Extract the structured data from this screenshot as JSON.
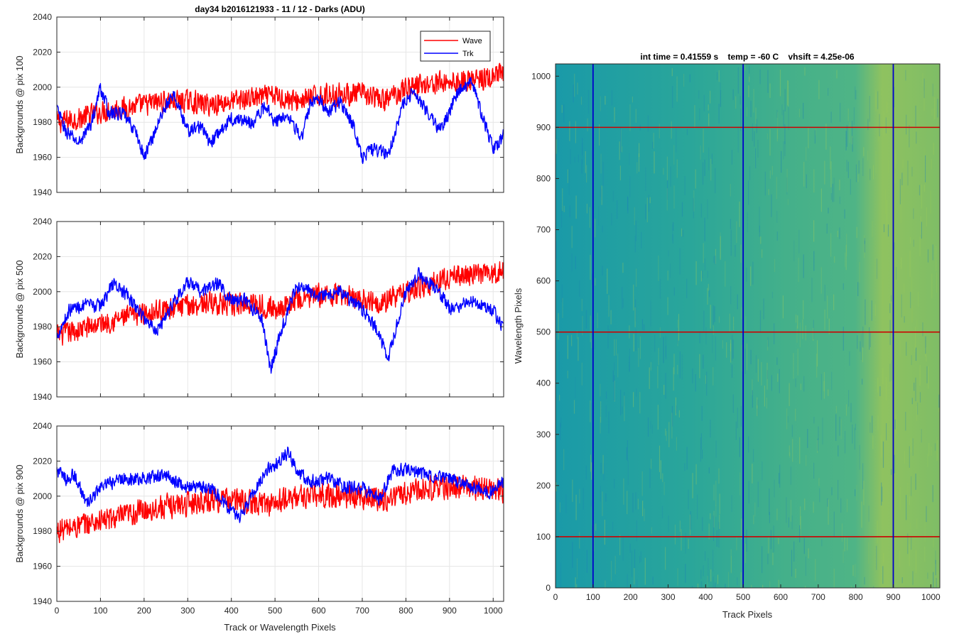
{
  "figure_title": "day34 b2016121933 - 11 / 12 - Darks (ADU)",
  "colors": {
    "wave": "#ff0000",
    "trk": "#0000ff",
    "grid": "#e6e6e6",
    "axis": "#262626"
  },
  "legend": {
    "placement": "top-right of first panel",
    "entries": [
      "Wave",
      "Trk"
    ]
  },
  "chart_data": [
    {
      "type": "line",
      "ylabel": "Backgrounds @ pix 100",
      "xlabel": "",
      "xlim": [
        0,
        1024
      ],
      "ylim": [
        1940,
        2040
      ],
      "xticks": [
        0,
        100,
        200,
        300,
        400,
        500,
        600,
        700,
        800,
        900,
        1000
      ],
      "yticks": [
        1940,
        1960,
        1980,
        2000,
        2020,
        2040
      ],
      "grid": true,
      "series": [
        {
          "name": "Wave",
          "color": "#ff0000",
          "x": [
            0,
            50,
            100,
            150,
            200,
            250,
            300,
            350,
            400,
            450,
            500,
            550,
            600,
            650,
            700,
            750,
            800,
            850,
            900,
            950,
            1000,
            1023
          ],
          "y": [
            1980,
            1982,
            1986,
            1988,
            1990,
            1992,
            1992,
            1990,
            1992,
            1994,
            1995,
            1992,
            1995,
            1996,
            1996,
            1992,
            2000,
            2002,
            2003,
            2004,
            2005,
            2008
          ],
          "spread": 10
        },
        {
          "name": "Trk",
          "color": "#0000ff",
          "x": [
            0,
            20,
            50,
            80,
            100,
            120,
            150,
            180,
            200,
            250,
            270,
            300,
            330,
            350,
            400,
            450,
            480,
            500,
            530,
            560,
            580,
            600,
            620,
            650,
            680,
            700,
            720,
            760,
            790,
            820,
            850,
            880,
            920,
            950,
            980,
            1000,
            1023
          ],
          "y": [
            1988,
            1975,
            1968,
            1980,
            2000,
            1985,
            1985,
            1975,
            1960,
            1990,
            1995,
            1975,
            1978,
            1968,
            1982,
            1980,
            1990,
            1980,
            1985,
            1970,
            1990,
            1995,
            1985,
            1992,
            1978,
            1960,
            1965,
            1962,
            1988,
            1998,
            1985,
            1975,
            1998,
            2003,
            1980,
            1965,
            1972
          ],
          "spread": 6
        }
      ]
    },
    {
      "type": "line",
      "ylabel": "Backgrounds @ pix 500",
      "xlabel": "",
      "xlim": [
        0,
        1024
      ],
      "ylim": [
        1940,
        2040
      ],
      "xticks": [
        0,
        100,
        200,
        300,
        400,
        500,
        600,
        700,
        800,
        900,
        1000
      ],
      "yticks": [
        1940,
        1960,
        1980,
        2000,
        2020,
        2040
      ],
      "grid": true,
      "series": [
        {
          "name": "Wave",
          "color": "#ff0000",
          "x": [
            0,
            50,
            100,
            150,
            200,
            250,
            300,
            350,
            400,
            450,
            500,
            550,
            600,
            650,
            700,
            750,
            800,
            850,
            900,
            950,
            1000,
            1023
          ],
          "y": [
            1975,
            1978,
            1982,
            1985,
            1988,
            1990,
            1992,
            1994,
            1992,
            1994,
            1990,
            1995,
            1998,
            1998,
            1996,
            1994,
            2000,
            2004,
            2008,
            2010,
            2010,
            2012
          ],
          "spread": 10
        },
        {
          "name": "Trk",
          "color": "#0000ff",
          "x": [
            0,
            30,
            60,
            100,
            130,
            160,
            200,
            230,
            270,
            300,
            330,
            370,
            400,
            430,
            470,
            490,
            510,
            550,
            600,
            650,
            700,
            730,
            760,
            800,
            830,
            870,
            900,
            950,
            1000,
            1023
          ],
          "y": [
            1975,
            1990,
            1992,
            1992,
            2005,
            1998,
            1985,
            1978,
            1995,
            2005,
            2000,
            2005,
            1995,
            1995,
            1985,
            1955,
            1975,
            2003,
            1998,
            2000,
            1990,
            1980,
            1962,
            2000,
            2010,
            2002,
            1990,
            1995,
            1990,
            1978
          ],
          "spread": 6
        }
      ]
    },
    {
      "type": "line",
      "ylabel": "Backgrounds @ pix 900",
      "xlabel": "Track or Wavelength Pixels",
      "xlim": [
        0,
        1024
      ],
      "ylim": [
        1940,
        2040
      ],
      "xticks": [
        0,
        100,
        200,
        300,
        400,
        500,
        600,
        700,
        800,
        900,
        1000
      ],
      "yticks": [
        1940,
        1960,
        1980,
        2000,
        2020,
        2040
      ],
      "grid": true,
      "series": [
        {
          "name": "Wave",
          "color": "#ff0000",
          "x": [
            0,
            50,
            100,
            150,
            200,
            250,
            300,
            350,
            400,
            450,
            500,
            550,
            600,
            650,
            700,
            750,
            800,
            850,
            900,
            950,
            1000,
            1023
          ],
          "y": [
            1980,
            1983,
            1986,
            1988,
            1992,
            1994,
            1996,
            1998,
            1998,
            1996,
            1996,
            2000,
            2000,
            2000,
            2000,
            1998,
            2002,
            2005,
            2005,
            2005,
            2004,
            2003
          ],
          "spread": 11
        },
        {
          "name": "Trk",
          "color": "#0000ff",
          "x": [
            0,
            20,
            40,
            70,
            100,
            150,
            200,
            250,
            300,
            350,
            400,
            420,
            450,
            480,
            500,
            530,
            550,
            580,
            620,
            660,
            700,
            740,
            770,
            800,
            850,
            900,
            950,
            1000,
            1023
          ],
          "y": [
            2015,
            2010,
            2012,
            1995,
            2005,
            2010,
            2010,
            2012,
            2005,
            2005,
            1992,
            1988,
            2002,
            2015,
            2018,
            2025,
            2015,
            2008,
            2010,
            2005,
            2005,
            1998,
            2015,
            2015,
            2012,
            2010,
            2005,
            2002,
            2008
          ],
          "spread": 6
        }
      ]
    },
    {
      "type": "heatmap",
      "title": "int time = 0.41559 s    temp = -60 C    vhsift = 4.25e-06",
      "xlabel": "Track Pixels",
      "ylabel": "Wavelength Pixels",
      "xlim": [
        0,
        1024
      ],
      "ylim": [
        0,
        1024
      ],
      "xticks": [
        0,
        100,
        200,
        300,
        400,
        500,
        600,
        700,
        800,
        900,
        1000
      ],
      "yticks": [
        0,
        100,
        200,
        300,
        400,
        500,
        600,
        700,
        800,
        900,
        1000
      ],
      "vertical_markers": {
        "color": "#0000cc",
        "x": [
          100,
          500,
          900
        ]
      },
      "horizontal_markers": {
        "color": "#cc0000",
        "y": [
          100,
          500,
          900
        ]
      }
    }
  ]
}
